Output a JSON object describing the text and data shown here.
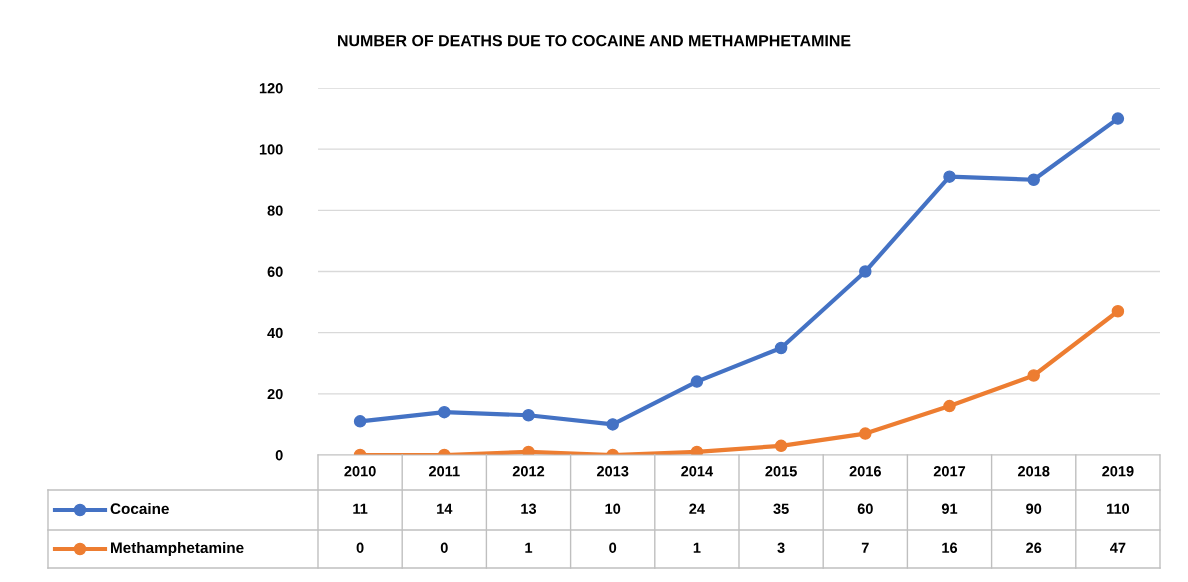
{
  "chart_data": {
    "type": "line",
    "title": "NUMBER OF DEATHS DUE TO COCAINE AND METHAMPHETAMINE",
    "categories": [
      "2010",
      "2011",
      "2012",
      "2013",
      "2014",
      "2015",
      "2016",
      "2017",
      "2018",
      "2019"
    ],
    "series": [
      {
        "name": "Cocaine",
        "color": "#4472c4",
        "values": [
          11,
          14,
          13,
          10,
          24,
          35,
          60,
          91,
          90,
          110
        ]
      },
      {
        "name": "Methamphetamine",
        "color": "#ed7d31",
        "values": [
          0,
          0,
          1,
          0,
          1,
          3,
          7,
          16,
          26,
          47
        ]
      }
    ],
    "ylim": [
      0,
      120
    ],
    "yticks": [
      0,
      20,
      40,
      60,
      80,
      100,
      120
    ],
    "grid": "y",
    "legend": "bottom",
    "data_labels": true,
    "marker": "circle",
    "line_style": "solid"
  }
}
